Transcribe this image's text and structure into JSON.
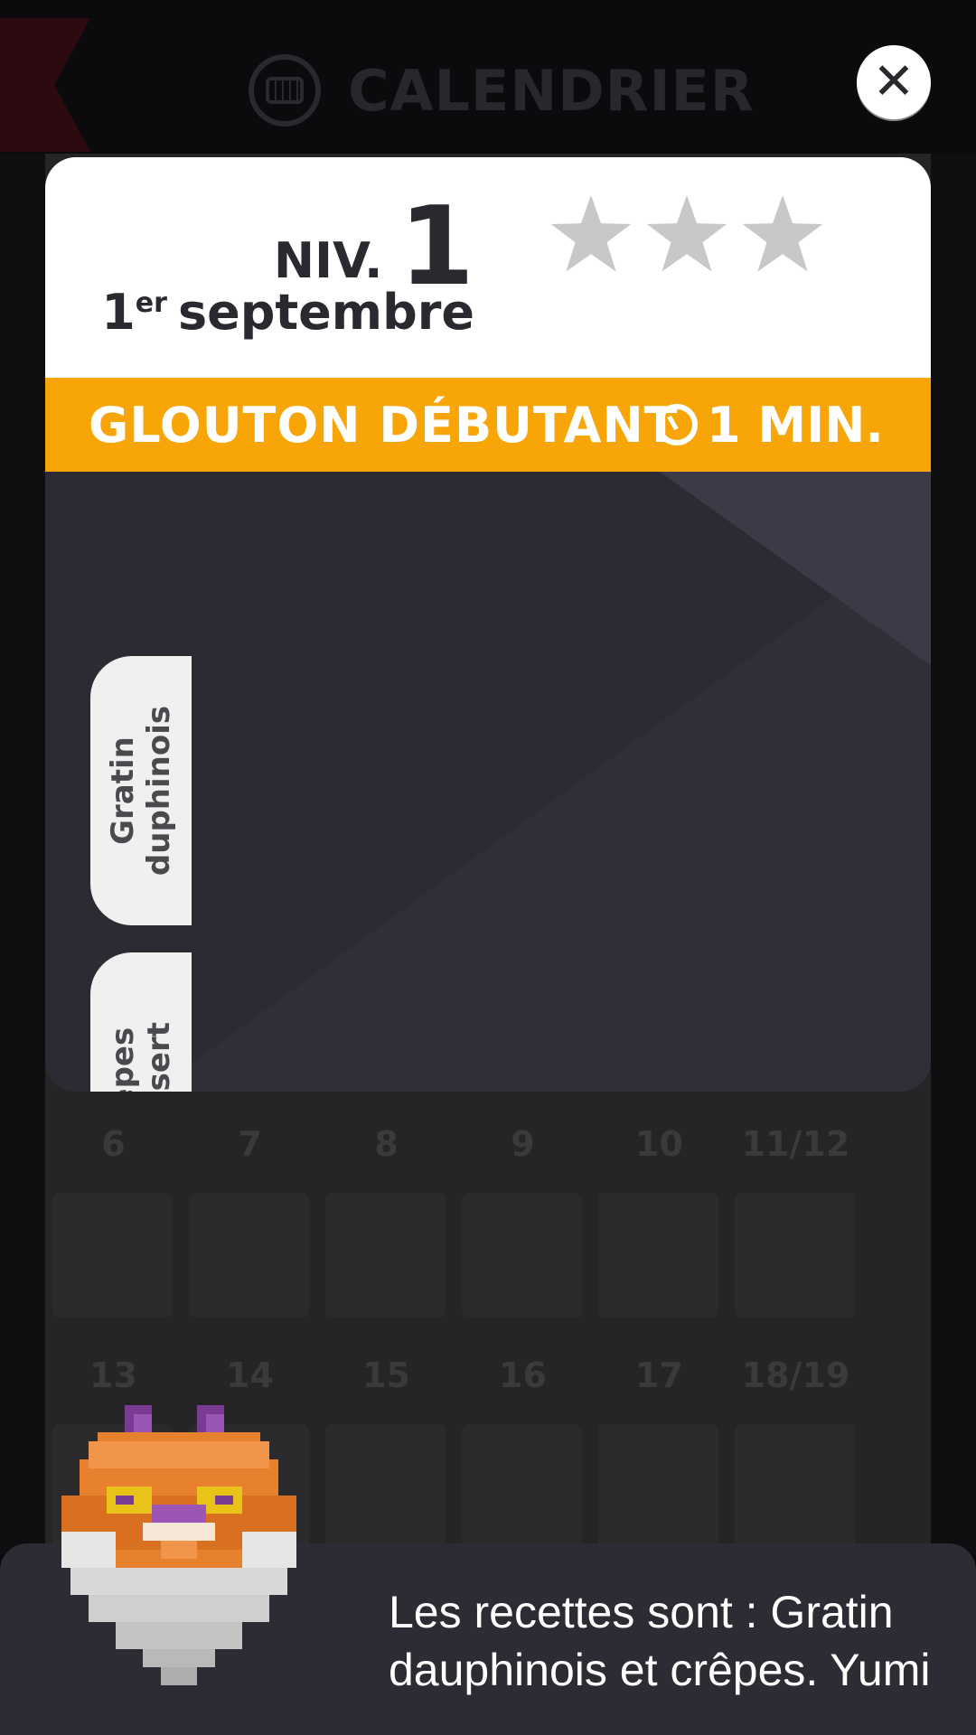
{
  "header": {
    "title": "CALENDRIER",
    "icon": "calendar-icon",
    "close_icon": "close-icon"
  },
  "level": {
    "niv_label": "NIV.",
    "number": "1",
    "date_day": "1",
    "date_suffix": "er",
    "date_month": "septembre",
    "stars_earned": 0,
    "stars_total": 3
  },
  "banner": {
    "title": "GLOUTON DÉBUTANT",
    "timer_icon": "stopwatch-icon",
    "duration": "1 MIN."
  },
  "recipes": [
    {
      "line1": "Gratin",
      "line2": "duphinois"
    },
    {
      "line1": "Crèpes",
      "line2": "dessert"
    }
  ],
  "calendar": {
    "week1": [
      "6",
      "7",
      "8",
      "9",
      "10",
      "11/12"
    ],
    "week2": [
      "13",
      "14",
      "15",
      "16",
      "17",
      "18/19"
    ]
  },
  "dialog": {
    "text": "Les recettes sont : Gratin dauphinois et crêpes. Yumi"
  },
  "colors": {
    "banner": "#f7a507",
    "modal_body": "#2c2b33",
    "star_empty": "#c8c8c8"
  }
}
